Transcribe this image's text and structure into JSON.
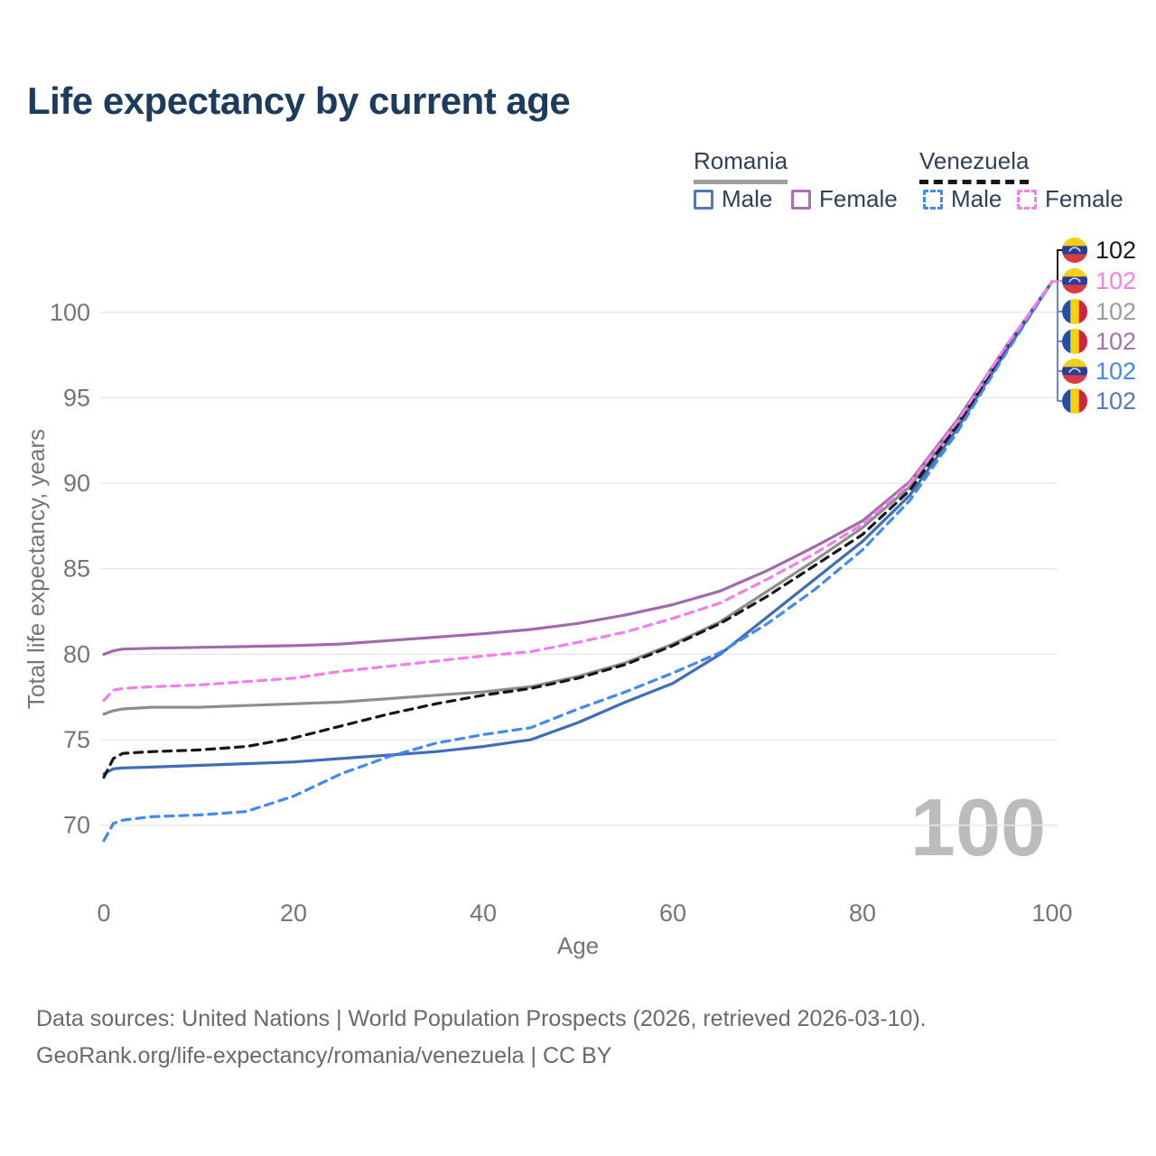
{
  "title": "Life expectancy by current age",
  "legend": {
    "romania": {
      "label": "Romania",
      "male_label": "Male",
      "female_label": "Female"
    },
    "venezuela": {
      "label": "Venezuela",
      "male_label": "Male",
      "female_label": "Female"
    }
  },
  "watermark": "100",
  "footer": {
    "line1": "Data sources: United Nations | World Population Prospects (2026, retrieved 2026-03-10).",
    "line2": "GeoRank.org/life-expectancy/romania/venezuela | CC BY"
  },
  "colors": {
    "title_text": "#1c3b5e",
    "axis_text": "#757575",
    "gridline": "#e9e9e9",
    "watermark": "#bcbcbc",
    "romania_male": "#3f6db8",
    "romania_female": "#a06aad",
    "romania_total": "#8e8e8e",
    "venezuela_male": "#4189f4",
    "venezuela_female": "#f77cee",
    "venezuela_total": "#161616",
    "leader_upper": "#1a1a1a",
    "leader_lower": "#6b87c4"
  },
  "chart_data": {
    "type": "line",
    "title": "Life expectancy by current age",
    "xlabel": "Age",
    "ylabel": "Total life expectancy, years",
    "xlim": [
      0,
      100
    ],
    "ylim": [
      66.5,
      102.1
    ],
    "xticks": [
      0,
      20,
      40,
      60,
      80,
      100
    ],
    "yticks": [
      70,
      75,
      80,
      85,
      90,
      95,
      100
    ],
    "grid": "horizontal",
    "legend_position": "top-right",
    "x": [
      0,
      1,
      2,
      5,
      10,
      15,
      20,
      25,
      30,
      35,
      40,
      45,
      50,
      55,
      60,
      65,
      70,
      75,
      80,
      85,
      90,
      95,
      100
    ],
    "series": [
      {
        "name": "romania_total",
        "country": "Romania",
        "sex": "Both",
        "style": "solid",
        "color": "#8e8e8e",
        "values": [
          76.5,
          76.7,
          76.8,
          76.9,
          76.9,
          77.0,
          77.1,
          77.2,
          77.4,
          77.6,
          77.8,
          78.1,
          78.7,
          79.5,
          80.6,
          81.9,
          83.7,
          85.5,
          87.4,
          89.8,
          93.5,
          97.8,
          101.8
        ]
      },
      {
        "name": "romania_female",
        "country": "Romania",
        "sex": "Female",
        "style": "solid",
        "color": "#a06aad",
        "values": [
          80.0,
          80.2,
          80.3,
          80.35,
          80.4,
          80.45,
          80.5,
          80.6,
          80.8,
          81.0,
          81.2,
          81.45,
          81.8,
          82.3,
          82.9,
          83.7,
          84.9,
          86.3,
          87.8,
          90.1,
          93.7,
          97.9,
          101.8
        ]
      },
      {
        "name": "romania_male",
        "country": "Romania",
        "sex": "Male",
        "style": "solid",
        "color": "#3f6db8",
        "values": [
          73.0,
          73.3,
          73.35,
          73.4,
          73.5,
          73.6,
          73.7,
          73.9,
          74.1,
          74.3,
          74.6,
          75.0,
          76.0,
          77.2,
          78.3,
          80.0,
          82.2,
          84.4,
          86.6,
          89.3,
          93.2,
          97.6,
          101.8
        ]
      },
      {
        "name": "venezuela_total",
        "country": "Venezuela",
        "sex": "Both",
        "style": "dashed",
        "color": "#161616",
        "values": [
          72.8,
          73.9,
          74.2,
          74.3,
          74.4,
          74.6,
          75.1,
          75.8,
          76.5,
          77.1,
          77.6,
          78.0,
          78.6,
          79.4,
          80.5,
          81.8,
          83.4,
          85.2,
          87.0,
          89.6,
          93.4,
          97.7,
          101.8
        ]
      },
      {
        "name": "venezuela_male",
        "country": "Venezuela",
        "sex": "Male",
        "style": "dashed",
        "color": "#4189f4",
        "values": [
          69.1,
          70.1,
          70.3,
          70.5,
          70.6,
          70.8,
          71.7,
          73.0,
          74.0,
          74.8,
          75.3,
          75.7,
          76.8,
          77.8,
          78.9,
          80.1,
          81.8,
          83.8,
          86.1,
          89.0,
          93.0,
          97.5,
          101.8
        ]
      },
      {
        "name": "venezuela_female",
        "country": "Venezuela",
        "sex": "Female",
        "style": "dashed",
        "color": "#f77cee",
        "values": [
          77.3,
          77.9,
          78.0,
          78.1,
          78.2,
          78.4,
          78.6,
          79.0,
          79.3,
          79.6,
          79.9,
          80.15,
          80.7,
          81.3,
          82.1,
          83.0,
          84.4,
          85.9,
          87.6,
          90.0,
          93.6,
          97.9,
          101.8
        ]
      }
    ],
    "endpoint_labels": [
      {
        "country": "venezuela",
        "series": "venezuela_total",
        "value": "102",
        "color": "#1a1a1a",
        "y": 277
      },
      {
        "country": "venezuela",
        "series": "venezuela_female",
        "value": "102",
        "color": "#f77cee",
        "y": 311
      },
      {
        "country": "romania",
        "series": "romania_total",
        "value": "102",
        "color": "#9b9b9b",
        "y": 345
      },
      {
        "country": "romania",
        "series": "romania_female",
        "value": "102",
        "color": "#a36fb0",
        "y": 378
      },
      {
        "country": "venezuela",
        "series": "venezuela_male",
        "value": "102",
        "color": "#4189f4",
        "y": 411
      },
      {
        "country": "romania",
        "series": "romania_male",
        "value": "102",
        "color": "#5577b8",
        "y": 444
      }
    ]
  }
}
